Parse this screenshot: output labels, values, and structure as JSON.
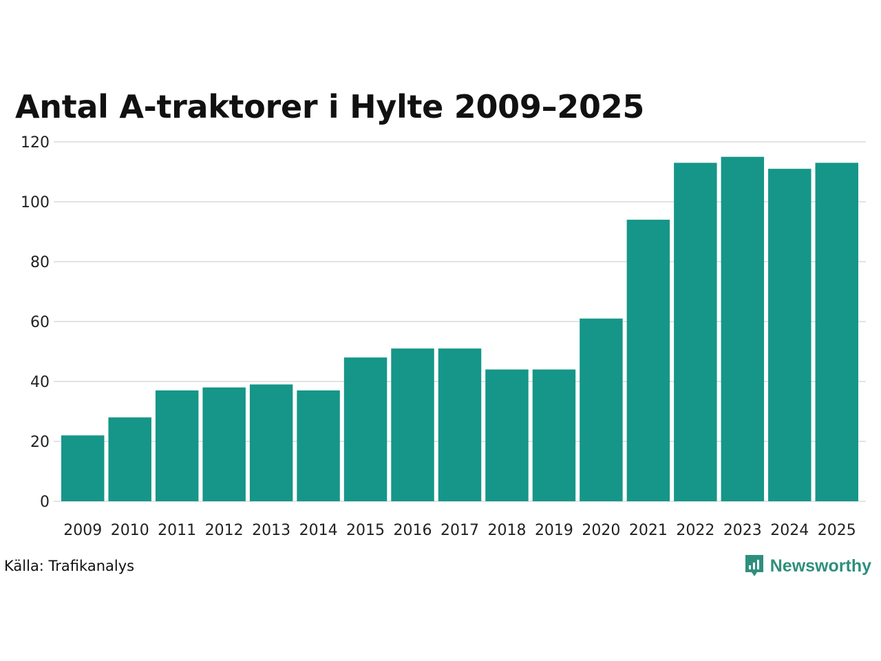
{
  "chart_data": {
    "type": "bar",
    "title": "Antal A-traktorer i Hylte 2009–2025",
    "xlabel": "",
    "ylabel": "",
    "categories": [
      "2009",
      "2010",
      "2011",
      "2012",
      "2013",
      "2014",
      "2015",
      "2016",
      "2017",
      "2018",
      "2019",
      "2020",
      "2021",
      "2022",
      "2023",
      "2024",
      "2025"
    ],
    "values": [
      22,
      28,
      37,
      38,
      39,
      37,
      48,
      51,
      51,
      44,
      44,
      61,
      94,
      113,
      115,
      111,
      113
    ],
    "ylim": [
      0,
      120
    ],
    "yticks": [
      "0",
      "20",
      "40",
      "60",
      "80",
      "100",
      "120"
    ],
    "grid": true,
    "bar_color": "#159688",
    "grid_color": "#e3e3e3"
  },
  "footer": {
    "source": "Källa: Trafikanalys",
    "brand": "Newsworthy",
    "brand_color": "#2f8f7e",
    "brand_icon": "newsworthy-logo-icon"
  }
}
